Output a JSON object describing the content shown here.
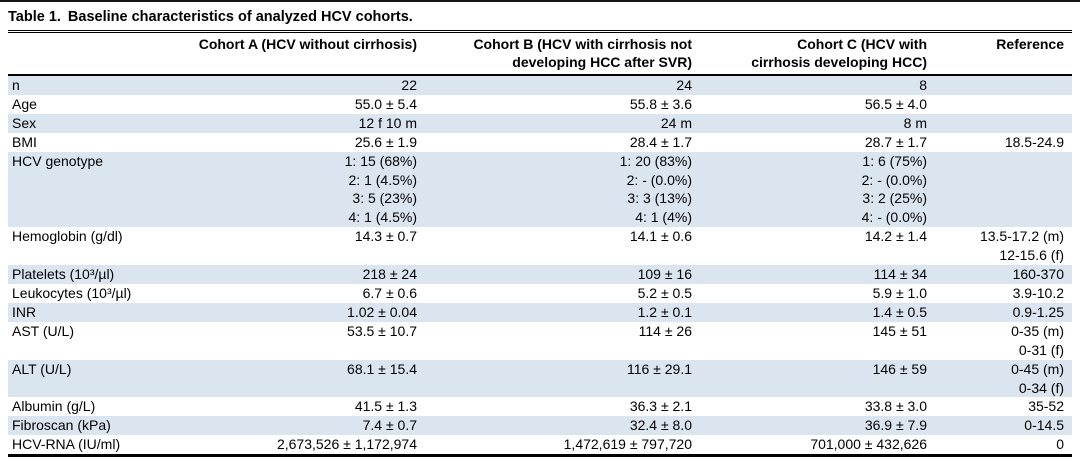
{
  "table": {
    "title": {
      "prefix": "Table 1.",
      "text": "Baseline characteristics of analyzed HCV cohorts."
    },
    "columns": {
      "label": "",
      "cohort_a": "Cohort A (HCV without cirrhosis)",
      "cohort_b": "Cohort B (HCV with cirrhosis not\ndeveloping HCC after SVR)",
      "cohort_c": "Cohort C (HCV with\ncirrhosis developing HCC)",
      "reference": "Reference"
    },
    "rows": [
      {
        "label": "n",
        "cohort_a": "22",
        "cohort_b": "24",
        "cohort_c": "8",
        "reference": ""
      },
      {
        "label": "Age",
        "cohort_a": "55.0 ± 5.4",
        "cohort_b": "55.8 ± 3.6",
        "cohort_c": "56.5 ± 4.0",
        "reference": ""
      },
      {
        "label": "Sex",
        "cohort_a": "12 f 10 m",
        "cohort_b": "24 m",
        "cohort_c": "8 m",
        "reference": ""
      },
      {
        "label": "BMI",
        "cohort_a": "25.6 ± 1.9",
        "cohort_b": "28.4 ± 1.7",
        "cohort_c": "28.7 ± 1.7",
        "reference": "18.5-24.9"
      },
      {
        "label": "HCV genotype",
        "cohort_a": "1: 15 (68%)\n2: 1 (4.5%)\n3: 5 (23%)\n4: 1 (4.5%)",
        "cohort_b": "1: 20 (83%)\n2: - (0.0%)\n3: 3 (13%)\n4: 1 (4%)",
        "cohort_c": "1: 6 (75%)\n2: - (0.0%)\n3: 2 (25%)\n4: - (0.0%)",
        "reference": ""
      },
      {
        "label": "Hemoglobin (g/dl)",
        "cohort_a": "14.3 ± 0.7",
        "cohort_b": "14.1 ± 0.6",
        "cohort_c": "14.2 ± 1.4",
        "reference": "13.5-17.2 (m)\n12-15.6 (f)"
      },
      {
        "label": "Platelets (10³/µl)",
        "cohort_a": "218 ± 24",
        "cohort_b": "109 ± 16",
        "cohort_c": "114 ± 34",
        "reference": "160-370"
      },
      {
        "label": "Leukocytes (10³/µl)",
        "cohort_a": "6.7 ± 0.6",
        "cohort_b": "5.2 ± 0.5",
        "cohort_c": "5.9 ± 1.0",
        "reference": "3.9-10.2"
      },
      {
        "label": "INR",
        "cohort_a": "1.02 ± 0.04",
        "cohort_b": "1.2 ± 0.1",
        "cohort_c": "1.4 ± 0.5",
        "reference": "0.9-1.25"
      },
      {
        "label": "AST (U/L)",
        "cohort_a": "53.5 ± 10.7",
        "cohort_b": "114 ± 26",
        "cohort_c": "145 ± 51",
        "reference": "0-35 (m)\n0-31 (f)"
      },
      {
        "label": "ALT (U/L)",
        "cohort_a": "68.1 ± 15.4",
        "cohort_b": "116 ± 29.1",
        "cohort_c": "146 ± 59",
        "reference": "0-45 (m)\n0-34 (f)"
      },
      {
        "label": "Albumin (g/L)",
        "cohort_a": "41.5 ± 1.3",
        "cohort_b": "36.3 ± 2.1",
        "cohort_c": "33.8 ± 3.0",
        "reference": "35-52"
      },
      {
        "label": "Fibroscan (kPa)",
        "cohort_a": "7.4 ± 0.7",
        "cohort_b": "32.4 ± 8.0",
        "cohort_c": "36.9 ± 7.9",
        "reference": "0-14.5"
      },
      {
        "label": "HCV-RNA (IU/ml)",
        "cohort_a": "2,673,526 ± 1,172,974",
        "cohort_b": "1,472,619 ± 797,720",
        "cohort_c": "701,000 ± 432,626",
        "reference": "0"
      }
    ],
    "colors": {
      "row_stripe": "#dbe5f0",
      "rule": "#000000"
    }
  }
}
